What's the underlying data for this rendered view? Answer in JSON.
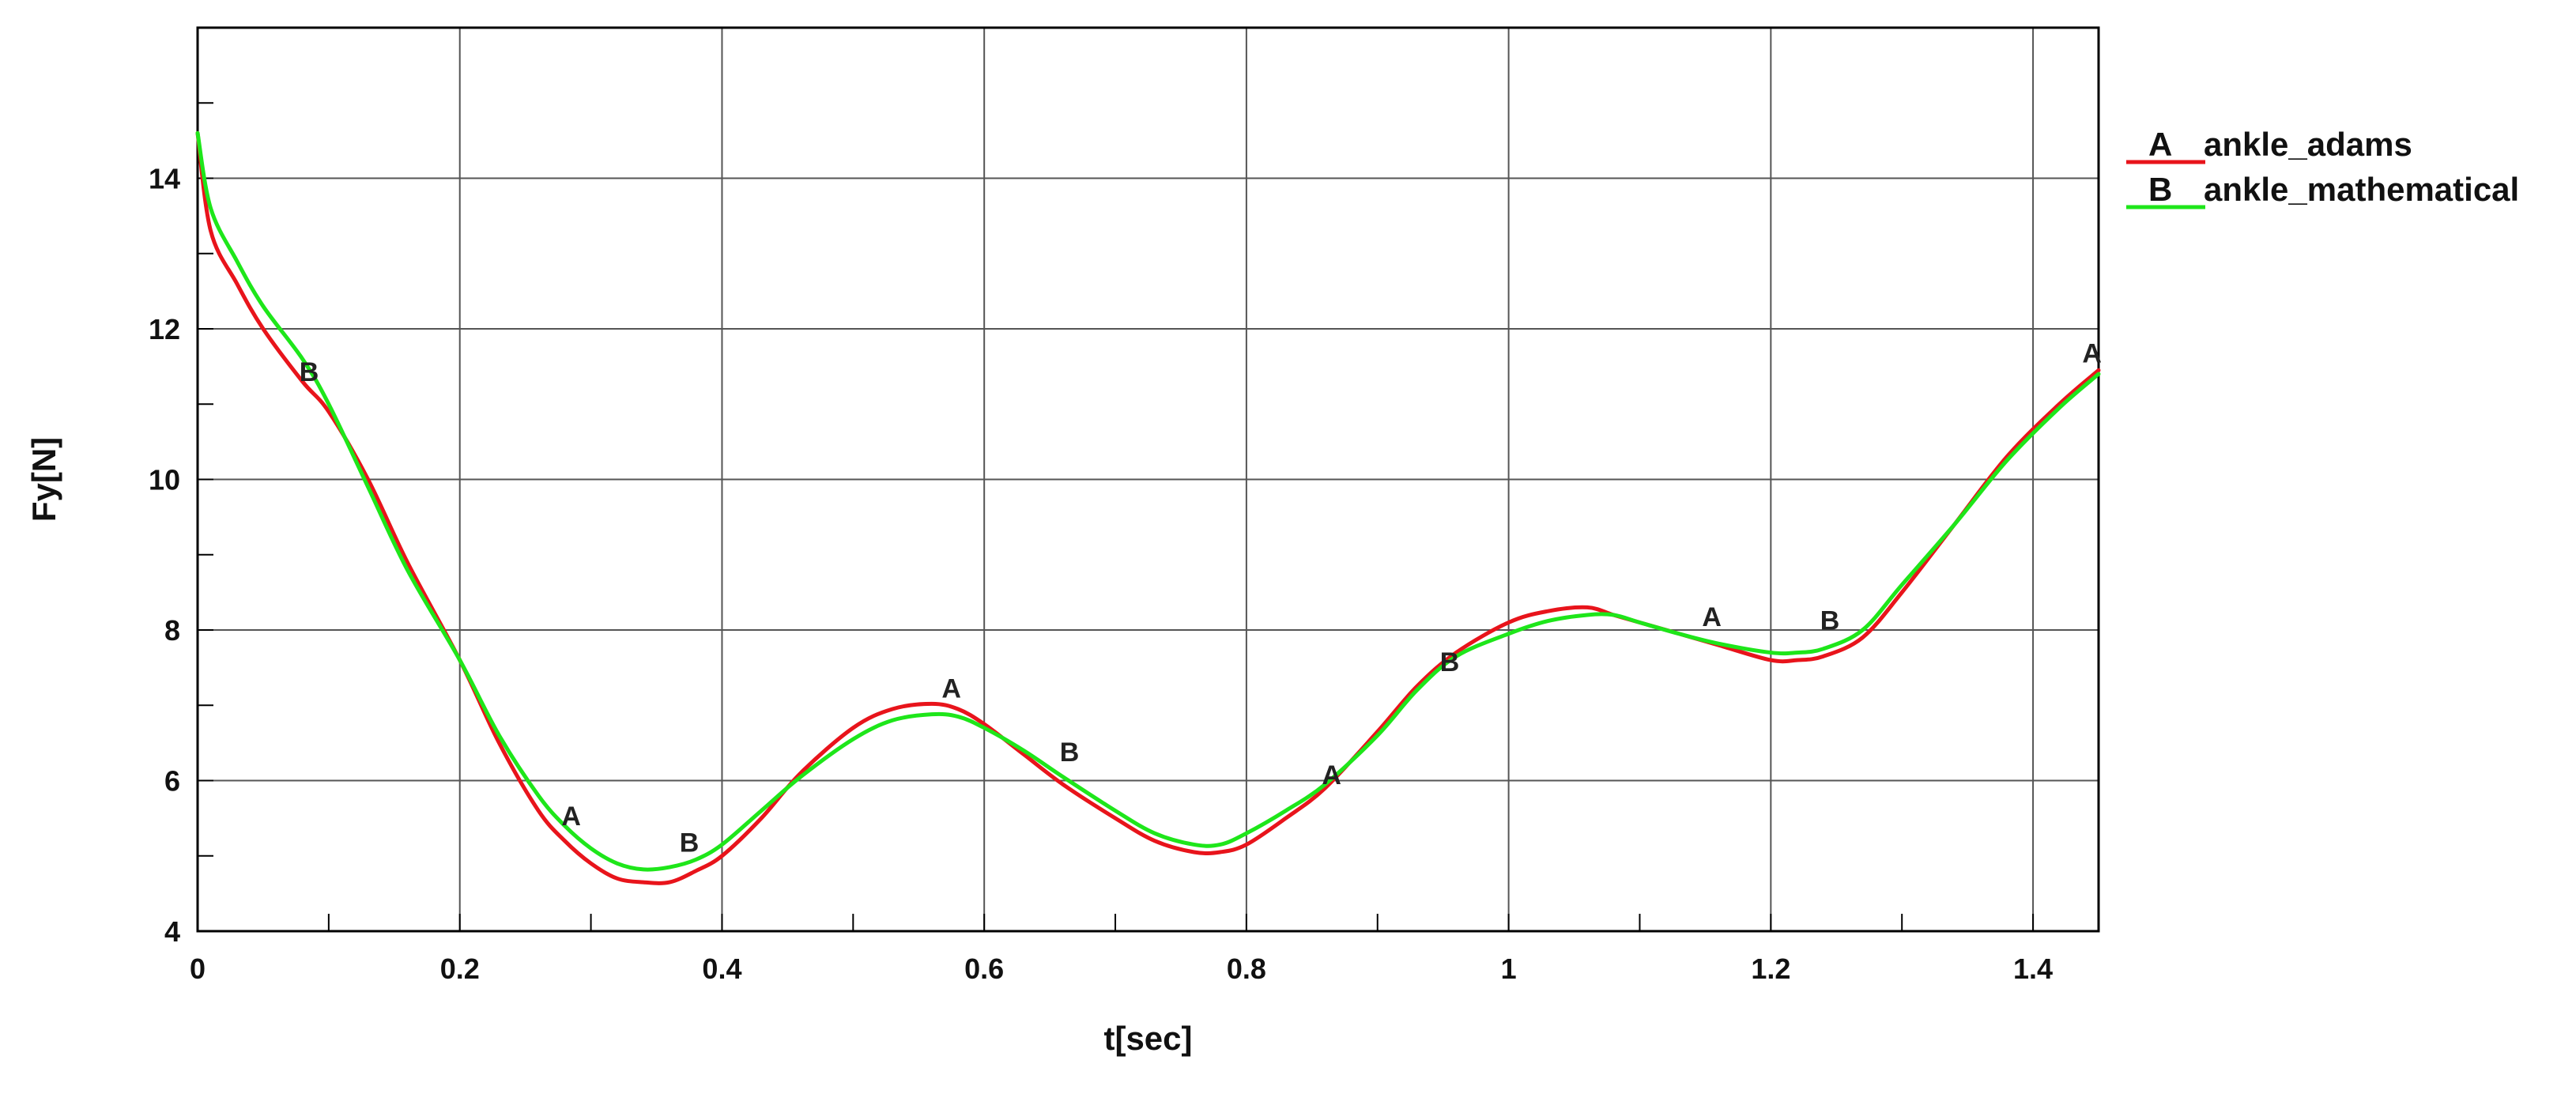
{
  "chart_data": {
    "type": "line",
    "xlabel": "t[sec]",
    "ylabel": "Fy[N]",
    "xlim": [
      0,
      1.45
    ],
    "ylim": [
      4,
      16
    ],
    "xticks": [
      0,
      0.2,
      0.4,
      0.6,
      0.8,
      1,
      1.2,
      1.4
    ],
    "xtick_labels": [
      "0",
      "0.2",
      "0.4",
      "0.6",
      "0.8",
      "1",
      "1.2",
      "1.4"
    ],
    "yticks": [
      4,
      6,
      8,
      10,
      12,
      14
    ],
    "ytick_labels": [
      "4",
      "6",
      "8",
      "10",
      "12",
      "14"
    ],
    "grid": true,
    "legend_position": "top-right, outside plot",
    "series": [
      {
        "name": "ankle_adams",
        "marker": "A",
        "color": "#e8141b",
        "x": [
          0,
          0.01,
          0.03,
          0.05,
          0.08,
          0.1,
          0.13,
          0.16,
          0.2,
          0.23,
          0.26,
          0.28,
          0.3,
          0.32,
          0.34,
          0.36,
          0.38,
          0.4,
          0.43,
          0.46,
          0.5,
          0.53,
          0.56,
          0.58,
          0.6,
          0.63,
          0.66,
          0.7,
          0.73,
          0.76,
          0.78,
          0.8,
          0.83,
          0.86,
          0.9,
          0.93,
          0.96,
          1.0,
          1.03,
          1.06,
          1.08,
          1.1,
          1.13,
          1.16,
          1.2,
          1.22,
          1.24,
          1.27,
          1.3,
          1.34,
          1.38,
          1.42,
          1.45
        ],
        "y": [
          14.6,
          13.3,
          12.6,
          12.0,
          11.3,
          10.9,
          10.0,
          8.9,
          7.6,
          6.5,
          5.6,
          5.2,
          4.9,
          4.7,
          4.65,
          4.65,
          4.8,
          5.0,
          5.5,
          6.1,
          6.7,
          6.95,
          7.02,
          6.95,
          6.75,
          6.35,
          5.95,
          5.5,
          5.2,
          5.05,
          5.05,
          5.15,
          5.5,
          5.9,
          6.65,
          7.25,
          7.7,
          8.1,
          8.25,
          8.3,
          8.2,
          8.1,
          7.95,
          7.8,
          7.6,
          7.6,
          7.65,
          7.9,
          8.5,
          9.4,
          10.3,
          11.0,
          11.45
        ]
      },
      {
        "name": "ankle_mathematical",
        "marker": "B",
        "color": "#1ee61a",
        "x": [
          0,
          0.01,
          0.03,
          0.05,
          0.08,
          0.1,
          0.13,
          0.16,
          0.2,
          0.23,
          0.26,
          0.28,
          0.3,
          0.32,
          0.34,
          0.36,
          0.38,
          0.4,
          0.43,
          0.46,
          0.5,
          0.53,
          0.56,
          0.58,
          0.6,
          0.63,
          0.66,
          0.7,
          0.73,
          0.76,
          0.78,
          0.8,
          0.83,
          0.86,
          0.9,
          0.93,
          0.96,
          1.0,
          1.03,
          1.06,
          1.08,
          1.1,
          1.13,
          1.16,
          1.2,
          1.22,
          1.24,
          1.27,
          1.3,
          1.34,
          1.38,
          1.42,
          1.45
        ],
        "y": [
          14.6,
          13.6,
          12.9,
          12.3,
          11.6,
          11.0,
          9.9,
          8.8,
          7.6,
          6.6,
          5.8,
          5.4,
          5.1,
          4.9,
          4.82,
          4.85,
          4.95,
          5.15,
          5.6,
          6.05,
          6.55,
          6.8,
          6.88,
          6.85,
          6.7,
          6.4,
          6.05,
          5.6,
          5.3,
          5.15,
          5.15,
          5.3,
          5.6,
          5.95,
          6.6,
          7.2,
          7.65,
          7.95,
          8.12,
          8.2,
          8.2,
          8.1,
          7.95,
          7.82,
          7.7,
          7.7,
          7.75,
          8.0,
          8.6,
          9.4,
          10.25,
          10.95,
          11.4
        ]
      }
    ],
    "marker_labels": [
      {
        "series": 1,
        "text": "B",
        "x": 0.085,
        "y": 11.2
      },
      {
        "series": 0,
        "text": "A",
        "x": 0.285,
        "y": 5.3
      },
      {
        "series": 1,
        "text": "B",
        "x": 0.375,
        "y": 4.95
      },
      {
        "series": 0,
        "text": "A",
        "x": 0.575,
        "y": 7.0
      },
      {
        "series": 1,
        "text": "B",
        "x": 0.665,
        "y": 6.15
      },
      {
        "series": 0,
        "text": "A",
        "x": 0.865,
        "y": 5.85
      },
      {
        "series": 1,
        "text": "B",
        "x": 0.955,
        "y": 7.35
      },
      {
        "series": 0,
        "text": "A",
        "x": 1.155,
        "y": 7.95
      },
      {
        "series": 1,
        "text": "B",
        "x": 1.245,
        "y": 7.9
      },
      {
        "series": 0,
        "text": "A",
        "x": 1.445,
        "y": 11.45
      }
    ],
    "legend": [
      {
        "marker": "A",
        "name": "ankle_adams",
        "color": "#e8141b"
      },
      {
        "marker": "B",
        "name": "ankle_mathematical",
        "color": "#1ee61a"
      }
    ]
  }
}
